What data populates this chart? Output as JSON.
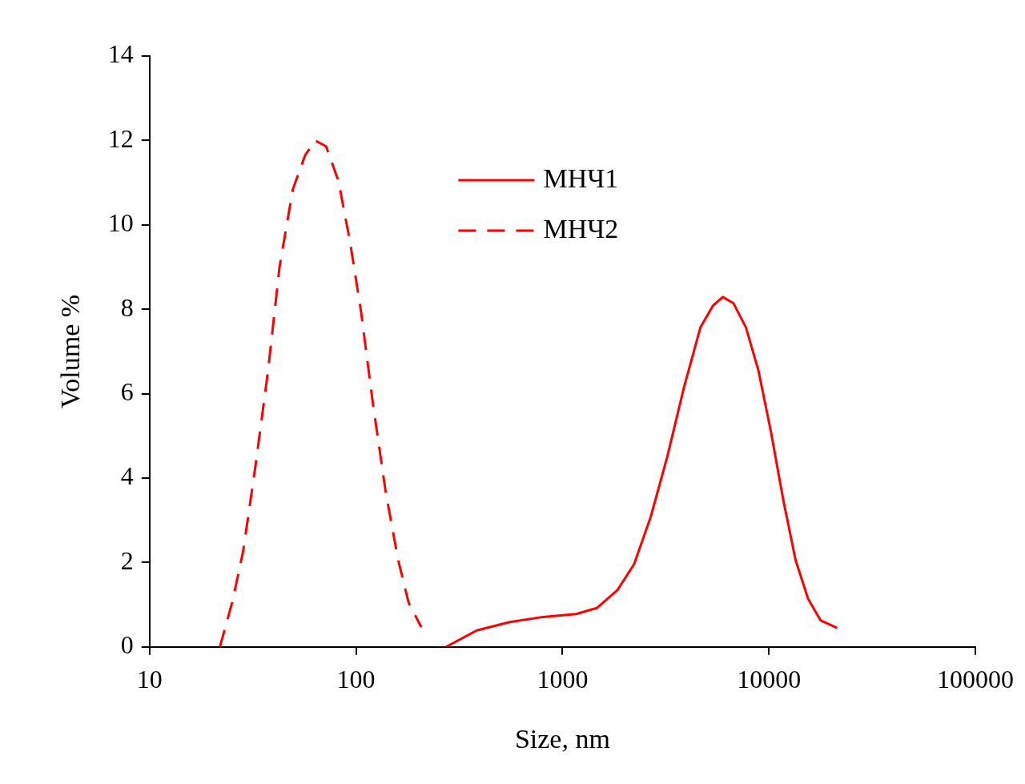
{
  "chart_data": {
    "type": "line",
    "xlabel": "Size, nm",
    "ylabel": "Volume %",
    "log": "x",
    "xlim": [
      10,
      100000
    ],
    "xticks": [
      10,
      100,
      1000,
      10000,
      100000
    ],
    "ylim": [
      0,
      14
    ],
    "yticks": [
      0,
      2,
      4,
      6,
      8,
      10,
      12,
      14
    ],
    "grid": false,
    "legend": "top",
    "marker": "none",
    "series": [
      {
        "name": "МНЧ1",
        "color": "#ff0000",
        "line_style": "solid",
        "x": [
          273,
          384,
          556,
          805,
          1164,
          1466,
          1849,
          2223,
          2675,
          3220,
          3874,
          4659,
          5350,
          5977,
          6740,
          7740,
          8895,
          10210,
          11730,
          13460,
          15480,
          17780,
          21390
        ],
        "values": [
          0,
          0.39,
          0.59,
          0.71,
          0.78,
          0.92,
          1.35,
          1.96,
          3.08,
          4.51,
          6.14,
          7.57,
          8.08,
          8.29,
          8.14,
          7.57,
          6.55,
          5.12,
          3.49,
          2.06,
          1.14,
          0.63,
          0.45
        ]
      },
      {
        "name": "МНЧ2",
        "color": "#ff0000",
        "line_style": "dashed",
        "x": [
          21.9,
          25.2,
          28.4,
          32.6,
          37.5,
          42.6,
          49.4,
          56.7,
          63.4,
          71.6,
          82.2,
          93.5,
          105.5,
          121,
          139,
          160,
          180,
          207
        ],
        "values": [
          0,
          1.08,
          2.27,
          4.3,
          6.55,
          9.0,
          10.84,
          11.65,
          12.0,
          11.86,
          11.04,
          9.6,
          7.98,
          5.73,
          3.69,
          2.06,
          1.04,
          0.47
        ]
      }
    ]
  }
}
